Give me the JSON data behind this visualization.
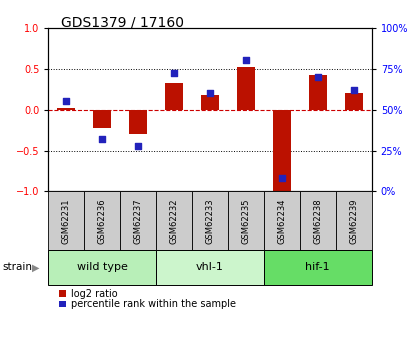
{
  "title": "GDS1379 / 17160",
  "samples": [
    "GSM62231",
    "GSM62236",
    "GSM62237",
    "GSM62232",
    "GSM62233",
    "GSM62235",
    "GSM62234",
    "GSM62238",
    "GSM62239"
  ],
  "log2_ratio": [
    0.02,
    -0.22,
    -0.3,
    0.32,
    0.18,
    0.52,
    -1.02,
    0.42,
    0.2
  ],
  "percentile_rank": [
    55,
    32,
    28,
    72,
    60,
    80,
    8,
    70,
    62
  ],
  "groups": [
    {
      "label": "wild type",
      "start": 0,
      "end": 3,
      "color": "#b8efb8"
    },
    {
      "label": "vhl-1",
      "start": 3,
      "end": 6,
      "color": "#ccf5cc"
    },
    {
      "label": "hif-1",
      "start": 6,
      "end": 9,
      "color": "#66dd66"
    }
  ],
  "ylim_left": [
    -1.0,
    1.0
  ],
  "ylim_right": [
    0,
    100
  ],
  "yticks_left": [
    -1,
    -0.5,
    0,
    0.5,
    1
  ],
  "yticks_right": [
    0,
    25,
    50,
    75,
    100
  ],
  "bar_color_red": "#bb1100",
  "dot_color_blue": "#2222bb",
  "dashed_line_color": "#cc0000",
  "bg_color": "#ffffff",
  "label_bg_color": "#cccccc",
  "strain_label": "strain",
  "legend_log2": "log2 ratio",
  "legend_pct": "percentile rank within the sample",
  "title_fontsize": 10,
  "tick_fontsize": 7,
  "label_fontsize": 6,
  "group_fontsize": 8
}
